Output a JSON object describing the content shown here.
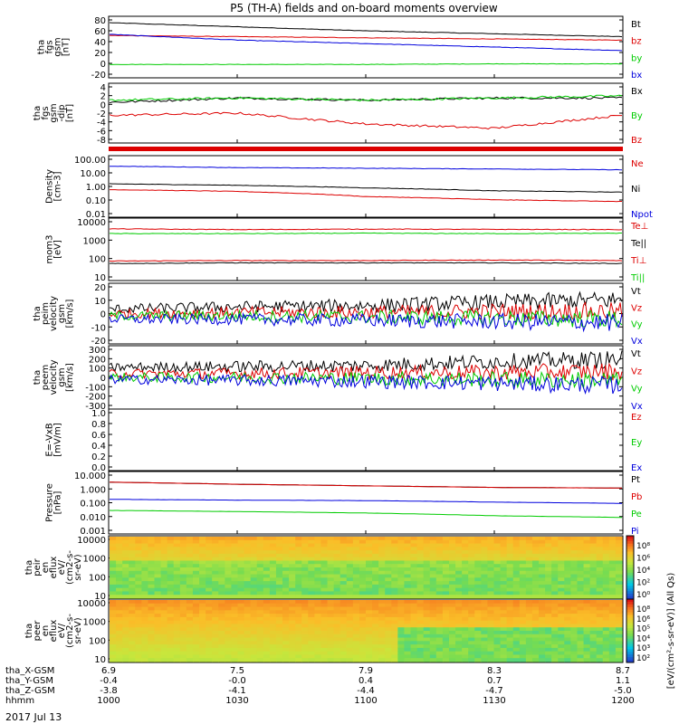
{
  "title": "P5 (TH-A) fields and on-board moments overview",
  "date_label": "2017 Jul 13",
  "colors": {
    "black": "#000000",
    "red": "#dd0000",
    "green": "#00cc00",
    "blue": "#0000dd",
    "bg": "#ffffff"
  },
  "panels": [
    {
      "id": "fgs",
      "label": [
        "tha",
        "fgs",
        "gsm",
        "[nT]"
      ],
      "ticks": [
        "80",
        "60",
        "40",
        "20",
        "0",
        "-20"
      ],
      "legend": [
        {
          "text": "Bt",
          "color": "black"
        },
        {
          "text": "bz",
          "color": "red"
        },
        {
          "text": "by",
          "color": "green"
        },
        {
          "text": "bx",
          "color": "blue"
        }
      ]
    },
    {
      "id": "efs",
      "label": [
        "tha",
        "fgs",
        "gsm",
        "-dip",
        "[nT]"
      ],
      "ticks": [
        "4",
        "2",
        "0",
        "-2",
        "-4",
        "-6",
        "-8"
      ],
      "legend": [
        {
          "text": "Bx",
          "color": "black"
        },
        {
          "text": "By",
          "color": "green"
        },
        {
          "text": "Bz",
          "color": "red"
        }
      ]
    },
    {
      "id": "density",
      "label": [
        "Density",
        "[cm-3]"
      ],
      "ticks": [
        "100.00",
        "10.00",
        "1.00",
        "0.10",
        "0.01"
      ],
      "legend": [
        {
          "text": "Ne",
          "color": "red"
        },
        {
          "text": "Ni",
          "color": "black"
        },
        {
          "text": "Npot",
          "color": "blue"
        }
      ]
    },
    {
      "id": "temp",
      "label": [
        "mom3",
        "[eV]"
      ],
      "ticks": [
        "10000",
        "1000",
        "100",
        "10"
      ],
      "legend": [
        {
          "text": "Te⊥",
          "color": "red"
        },
        {
          "text": "Te||",
          "color": "black"
        },
        {
          "text": "Ti⊥",
          "color": "red"
        },
        {
          "text": "Ti||",
          "color": "green"
        }
      ]
    },
    {
      "id": "peim",
      "label": [
        "tha",
        "peim",
        "velocity",
        "gsm",
        "[km/s]"
      ],
      "ticks": [
        "20",
        "10",
        "0",
        "-10",
        "-20"
      ],
      "legend": [
        {
          "text": "Vt",
          "color": "black"
        },
        {
          "text": "Vz",
          "color": "red"
        },
        {
          "text": "Vy",
          "color": "green"
        },
        {
          "text": "Vx",
          "color": "blue"
        }
      ]
    },
    {
      "id": "peem",
      "label": [
        "tha",
        "peem",
        "velocity",
        "gsm",
        "[km/s]"
      ],
      "ticks": [
        "300",
        "200",
        "100",
        "0",
        "-100",
        "-200",
        "-300"
      ],
      "legend": [
        {
          "text": "Vt",
          "color": "black"
        },
        {
          "text": "Vz",
          "color": "red"
        },
        {
          "text": "Vy",
          "color": "green"
        },
        {
          "text": "Vx",
          "color": "blue"
        }
      ]
    },
    {
      "id": "efield",
      "label": [
        "E=-VxB",
        "[mV/m]"
      ],
      "ticks": [
        "1.0",
        "0.8",
        "0.6",
        "0.4",
        "0.2",
        "0.0"
      ],
      "legend": [
        {
          "text": "Ez",
          "color": "red"
        },
        {
          "text": "Ey",
          "color": "green"
        },
        {
          "text": "Ex",
          "color": "blue"
        }
      ]
    },
    {
      "id": "pressure",
      "label": [
        "Pressure",
        "[nPa]"
      ],
      "ticks": [
        "10.000",
        "1.000",
        "0.100",
        "0.010",
        "0.001"
      ],
      "legend": [
        {
          "text": "Pt",
          "color": "black"
        },
        {
          "text": "Pb",
          "color": "red"
        },
        {
          "text": "Pe",
          "color": "green"
        },
        {
          "text": "Pi",
          "color": "blue"
        }
      ]
    },
    {
      "id": "peir",
      "label": [
        "tha",
        "peir",
        "en",
        "eflux",
        "eV/",
        "(cm2-s-",
        "sr-eV)"
      ],
      "ticks": [
        "10000",
        "1000",
        "100",
        "10"
      ]
    },
    {
      "id": "peer",
      "label": [
        "tha",
        "peer",
        "en",
        "eflux",
        "eV/",
        "(cm2-s-",
        "sr-eV)"
      ],
      "ticks": [
        "10000",
        "1000",
        "100",
        "10"
      ]
    }
  ],
  "colorbar": {
    "ticks": [
      "10⁸",
      "10⁶",
      "10⁴",
      "10²",
      "10⁰"
    ],
    "ticks2": [
      "10⁸",
      "10⁶",
      "10⁵",
      "10⁴",
      "10³",
      "10²"
    ],
    "label": "[eV/(cm²-s-sr-eV)] (All Qs)"
  },
  "xaxis": {
    "rows": [
      {
        "label": "tha_X-GSM",
        "values": [
          "6.9",
          "7.5",
          "7.9",
          "8.3",
          "8.7"
        ]
      },
      {
        "label": "tha_Y-GSM",
        "values": [
          "-0.4",
          "-0.0",
          "0.4",
          "0.7",
          "1.1"
        ]
      },
      {
        "label": "tha_Z-GSM",
        "values": [
          "-3.8",
          "-4.1",
          "-4.4",
          "-4.7",
          "-5.0"
        ]
      },
      {
        "label": "hhmm",
        "values": [
          "1000",
          "1030",
          "1100",
          "1130",
          "1200"
        ]
      }
    ]
  },
  "chart_data": [
    {
      "type": "line",
      "title": "P5 (TH-A) fields and on-board moments overview",
      "ylabel": "tha fgs gsm [nT]",
      "x": [
        "1000",
        "1030",
        "1100",
        "1130",
        "1200"
      ],
      "ylim": [
        -20,
        80
      ],
      "series": [
        {
          "name": "Bt",
          "values": [
            72,
            65,
            58,
            53,
            48
          ]
        },
        {
          "name": "bz",
          "values": [
            50,
            48,
            46,
            44,
            42
          ]
        },
        {
          "name": "by",
          "values": [
            0,
            0,
            0,
            1,
            1
          ]
        },
        {
          "name": "bx",
          "values": [
            52,
            42,
            36,
            30,
            24
          ]
        }
      ]
    },
    {
      "type": "line",
      "ylabel": "tha fgs gsm -dip [nT]",
      "x": [
        "1000",
        "1030",
        "1100",
        "1130",
        "1200"
      ],
      "ylim": [
        -9,
        4
      ],
      "series": [
        {
          "name": "Bx",
          "values": [
            0,
            1,
            0.5,
            1,
            1
          ]
        },
        {
          "name": "By",
          "values": [
            0.5,
            1,
            0.5,
            1,
            1.5
          ]
        },
        {
          "name": "Bz",
          "values": [
            -3,
            -2.5,
            -5,
            -6,
            -3
          ]
        }
      ]
    },
    {
      "type": "line",
      "ylabel": "Density [cm-3]",
      "yscale": "log",
      "x": [
        "1000",
        "1030",
        "1100",
        "1130",
        "1200"
      ],
      "ylim": [
        0.01,
        100
      ],
      "series": [
        {
          "name": "Ne",
          "values": [
            0.6,
            0.45,
            0.2,
            0.12,
            0.09
          ]
        },
        {
          "name": "Ni",
          "values": [
            1.5,
            1.2,
            0.8,
            0.5,
            0.4
          ]
        },
        {
          "name": "Npot",
          "values": [
            25,
            20,
            18,
            16,
            14
          ]
        }
      ]
    },
    {
      "type": "line",
      "ylabel": "mom3 [eV]",
      "yscale": "log",
      "x": [
        "1000",
        "1030",
        "1100",
        "1130",
        "1200"
      ],
      "ylim": [
        10,
        10000
      ],
      "series": [
        {
          "name": "Te⊥",
          "values": [
            80,
            85,
            85,
            90,
            85
          ]
        },
        {
          "name": "Te||",
          "values": [
            60,
            65,
            65,
            65,
            60
          ]
        },
        {
          "name": "Ti⊥",
          "values": [
            3500,
            3200,
            3400,
            3300,
            3200
          ]
        },
        {
          "name": "Ti||",
          "values": [
            2000,
            2000,
            2100,
            2000,
            2100
          ]
        }
      ]
    },
    {
      "type": "line",
      "ylabel": "tha peim velocity gsm [km/s]",
      "x": [
        "1000",
        "1030",
        "1100",
        "1130",
        "1200"
      ],
      "ylim": [
        -25,
        25
      ],
      "series": [
        {
          "name": "Vt",
          "values": [
            4,
            6,
            7,
            10,
            12
          ]
        },
        {
          "name": "Vz",
          "values": [
            0,
            1,
            1,
            2,
            2
          ]
        },
        {
          "name": "Vy",
          "values": [
            -2,
            -2,
            -3,
            -4,
            -5
          ]
        },
        {
          "name": "Vx",
          "values": [
            -5,
            -5,
            -6,
            -7,
            -8
          ]
        }
      ]
    },
    {
      "type": "line",
      "ylabel": "tha peem velocity gsm [km/s]",
      "x": [
        "1000",
        "1030",
        "1100",
        "1130",
        "1200"
      ],
      "ylim": [
        -300,
        300
      ],
      "series": [
        {
          "name": "Vt",
          "values": [
            100,
            110,
            120,
            160,
            180
          ]
        },
        {
          "name": "Vz",
          "values": [
            40,
            40,
            50,
            50,
            60
          ]
        },
        {
          "name": "Vy",
          "values": [
            0,
            0,
            -10,
            -20,
            -30
          ]
        },
        {
          "name": "Vx",
          "values": [
            -20,
            -30,
            -40,
            -60,
            -80
          ]
        }
      ]
    },
    {
      "type": "line",
      "ylabel": "E=-VxB [mV/m]",
      "x": [
        "1000",
        "1030",
        "1100",
        "1130",
        "1200"
      ],
      "ylim": [
        0,
        1
      ],
      "series": []
    },
    {
      "type": "line",
      "ylabel": "Pressure [nPa]",
      "yscale": "log",
      "x": [
        "1000",
        "1030",
        "1100",
        "1130",
        "1200"
      ],
      "ylim": [
        0.001,
        10
      ],
      "series": [
        {
          "name": "Pt",
          "values": [
            2.5,
            1.8,
            1.4,
            1.1,
            1.0
          ]
        },
        {
          "name": "Pb",
          "values": [
            2.5,
            1.8,
            1.4,
            1.1,
            1.0
          ]
        },
        {
          "name": "Pe",
          "values": [
            0.03,
            0.025,
            0.02,
            0.013,
            0.01
          ]
        },
        {
          "name": "Pi",
          "values": [
            0.17,
            0.15,
            0.14,
            0.11,
            0.09
          ]
        }
      ]
    },
    {
      "type": "heatmap",
      "ylabel": "tha peir en eflux eV/(cm2-s-sr-eV)",
      "yscale": "log",
      "x": [
        "1000",
        "1030",
        "1100",
        "1130",
        "1200"
      ],
      "ylim": [
        5,
        25000
      ],
      "description_levels": "warm at high energy, green/cyan below ~1000 eV"
    },
    {
      "type": "heatmap",
      "ylabel": "tha peer en eflux eV/(cm2-s-sr-eV)",
      "yscale": "log",
      "x": [
        "1000",
        "1030",
        "1100",
        "1130",
        "1200"
      ],
      "ylim": [
        5,
        25000
      ],
      "description_levels": "red/orange at low energy, green after ~1100 at mid energy"
    }
  ]
}
